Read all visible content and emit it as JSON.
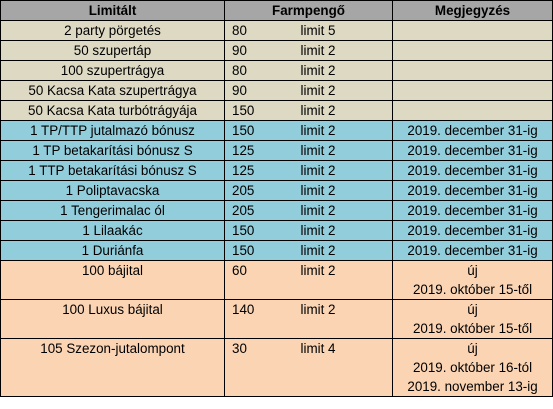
{
  "headers": {
    "item": "Limitált",
    "price": "Farmpengő",
    "note": "Megjegyzés"
  },
  "rows": [
    {
      "item": "2 party pörgetés",
      "price": "80",
      "limit": "limit 5",
      "note_lines": [],
      "group": "tan"
    },
    {
      "item": "50 szupertáp",
      "price": "90",
      "limit": "limit 2",
      "note_lines": [],
      "group": "tan"
    },
    {
      "item": "100 szupertrágya",
      "price": "80",
      "limit": "limit 2",
      "note_lines": [],
      "group": "tan"
    },
    {
      "item": "50 Kacsa Kata szupertrágya",
      "price": "90",
      "limit": "limit 2",
      "note_lines": [],
      "group": "tan"
    },
    {
      "item": "50 Kacsa Kata turbótrágyája",
      "price": "150",
      "limit": "limit 2",
      "note_lines": [],
      "group": "tan"
    },
    {
      "item": "1 TP/TTP jutalmazó bónusz",
      "price": "150",
      "limit": "limit 2",
      "note_lines": [
        "2019. december 31-ig"
      ],
      "group": "blue"
    },
    {
      "item": "1 TP betakarítási bónusz S",
      "price": "125",
      "limit": "limit 2",
      "note_lines": [
        "2019. december 31-ig"
      ],
      "group": "blue"
    },
    {
      "item": "1 TTP betakarítási bónusz S",
      "price": "125",
      "limit": "limit 2",
      "note_lines": [
        "2019. december 31-ig"
      ],
      "group": "blue"
    },
    {
      "item": "1 Poliptavacska",
      "price": "205",
      "limit": "limit 2",
      "note_lines": [
        "2019. december 31-ig"
      ],
      "group": "blue"
    },
    {
      "item": "1 Tengerimalac ól",
      "price": "205",
      "limit": "limit 2",
      "note_lines": [
        "2019. december 31-ig"
      ],
      "group": "blue"
    },
    {
      "item": "1 Lilaakác",
      "price": "150",
      "limit": "limit 2",
      "note_lines": [
        "2019. december 31-ig"
      ],
      "group": "blue"
    },
    {
      "item": "1 Duriánfa",
      "price": "150",
      "limit": "limit 2",
      "note_lines": [
        "2019. december 31-ig"
      ],
      "group": "blue"
    },
    {
      "item": "100 bájital",
      "price": "60",
      "limit": "limit 2",
      "note_lines": [
        "új",
        "2019. október 15-től"
      ],
      "group": "peach"
    },
    {
      "item": "100 Luxus bájital",
      "price": "140",
      "limit": "limit 2",
      "note_lines": [
        "új",
        "2019. október 15-től"
      ],
      "group": "peach"
    },
    {
      "item": "105 Szezon-jutalompont",
      "price": "30",
      "limit": "limit 4",
      "note_lines": [
        "új",
        "2019. október 16-tól",
        "2019. november 13-ig"
      ],
      "group": "peach"
    }
  ]
}
